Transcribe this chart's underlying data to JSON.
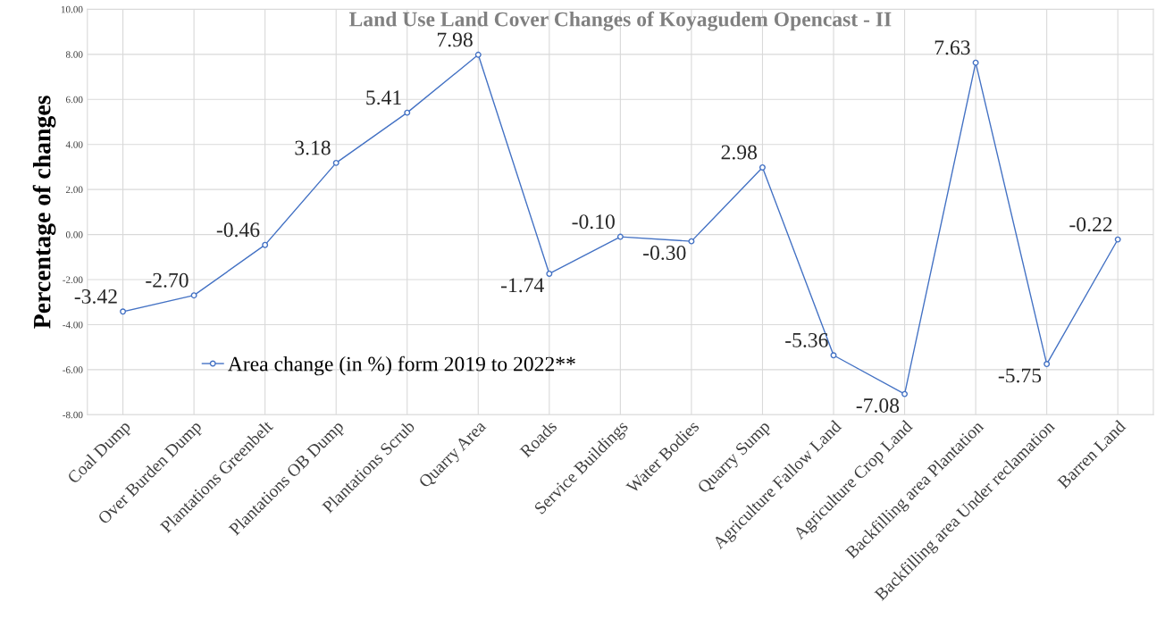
{
  "chart_data": {
    "type": "line",
    "title": "Land Use Land Cover Changes of Koyagudem Opencast - II",
    "ylabel": "Percentage of changes",
    "categories": [
      "Coal Dump",
      "Over Burden Dump",
      "Plantations Greenbelt",
      "Plantations OB Dump",
      "Plantations Scrub",
      "Quarry Area",
      "Roads",
      "Service Buildings",
      "Water Bodies",
      "Quarry Sump",
      "Agriculture Fallow Land",
      "Agriculture Crop Land",
      "Backfilling area Plantation",
      "Backfilling area Under reclamation",
      "Barren Land"
    ],
    "series": [
      {
        "name": "Area change (in %) form 2019 to 2022**",
        "color": "#4472c4",
        "values": [
          -3.42,
          -2.7,
          -0.46,
          3.18,
          5.41,
          7.98,
          -1.74,
          -0.1,
          -0.3,
          2.98,
          -5.36,
          -7.08,
          7.63,
          -5.75,
          -0.22
        ],
        "value_labels": [
          "-3.42",
          "-2.70",
          "-0.46",
          "3.18",
          "5.41",
          "7.98",
          "-1.74",
          "-0.10",
          "-0.30",
          "2.98",
          "-5.36",
          "-7.08",
          "7.63",
          "-5.75",
          "-0.22"
        ]
      }
    ],
    "ylim": [
      -8,
      10
    ],
    "yticks": [
      {
        "value": -8,
        "label": "-8.00"
      },
      {
        "value": -6,
        "label": "-6.00"
      },
      {
        "value": -4,
        "label": "-4.00"
      },
      {
        "value": -2,
        "label": "-2.00"
      },
      {
        "value": 0,
        "label": "0.00"
      },
      {
        "value": 2,
        "label": "2.00"
      },
      {
        "value": 4,
        "label": "4.00"
      },
      {
        "value": 6,
        "label": "6.00"
      },
      {
        "value": 8,
        "label": "8.00"
      },
      {
        "value": 10,
        "label": "10.00"
      }
    ],
    "grid": true,
    "legend": "bottom left",
    "marker": "circle",
    "line_style": "solid"
  }
}
